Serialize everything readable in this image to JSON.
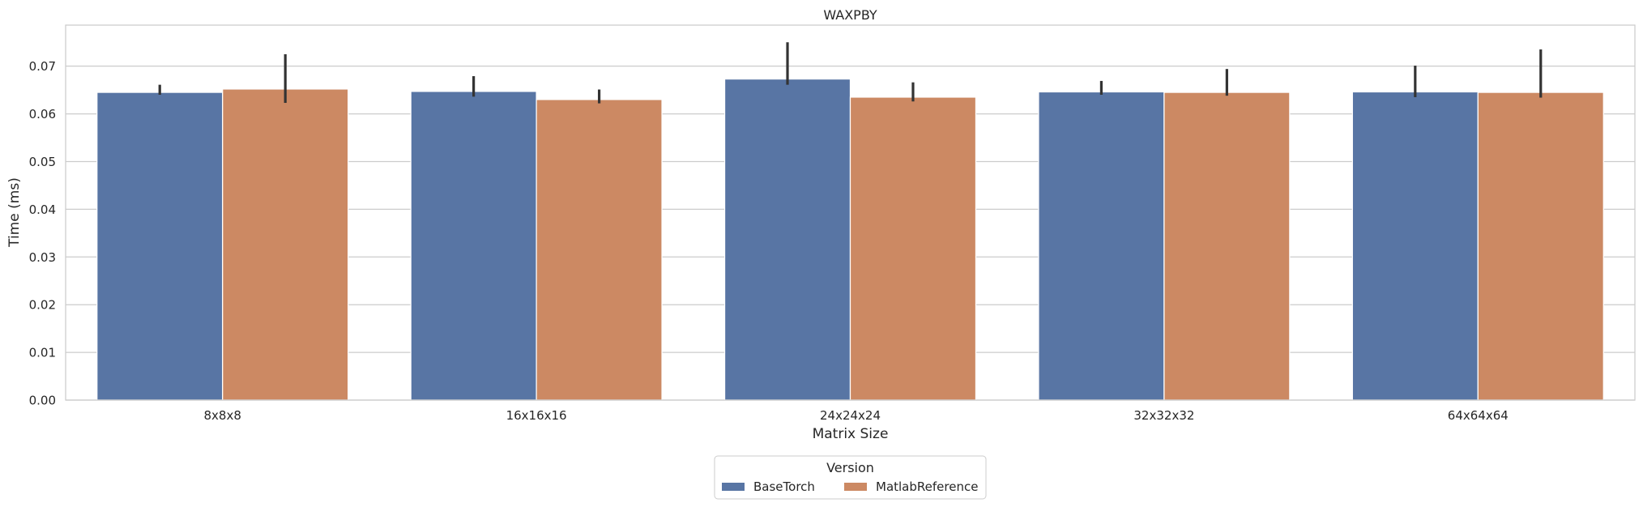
{
  "chart_data": {
    "type": "bar",
    "title": "WAXPBY",
    "xlabel": "Matrix Size",
    "ylabel": "Time (ms)",
    "categories": [
      "8x8x8",
      "16x16x16",
      "24x24x24",
      "32x32x32",
      "64x64x64"
    ],
    "ylim": [
      0,
      0.0786
    ],
    "yticks": [
      0.0,
      0.01,
      0.02,
      0.03,
      0.04,
      0.05,
      0.06,
      0.07
    ],
    "ytick_labels": [
      "0.00",
      "0.01",
      "0.02",
      "0.03",
      "0.04",
      "0.05",
      "0.06",
      "0.07"
    ],
    "grid": "horizontal",
    "legend": {
      "title": "Version",
      "placement": "bottom-center"
    },
    "series": [
      {
        "name": "BaseTorch",
        "color": "#5875a4",
        "values": [
          0.0645,
          0.0647,
          0.0673,
          0.0646,
          0.0646
        ],
        "error_low": [
          0.064,
          0.0636,
          0.0661,
          0.064,
          0.0635
        ],
        "error_high": [
          0.0661,
          0.0679,
          0.075,
          0.0669,
          0.0701
        ]
      },
      {
        "name": "MatlabReference",
        "color": "#cc8963",
        "values": [
          0.0652,
          0.063,
          0.0635,
          0.0645,
          0.0645
        ],
        "error_low": [
          0.0623,
          0.0622,
          0.0626,
          0.0638,
          0.0634
        ],
        "error_high": [
          0.0725,
          0.0651,
          0.0666,
          0.0694,
          0.0735
        ]
      }
    ]
  }
}
